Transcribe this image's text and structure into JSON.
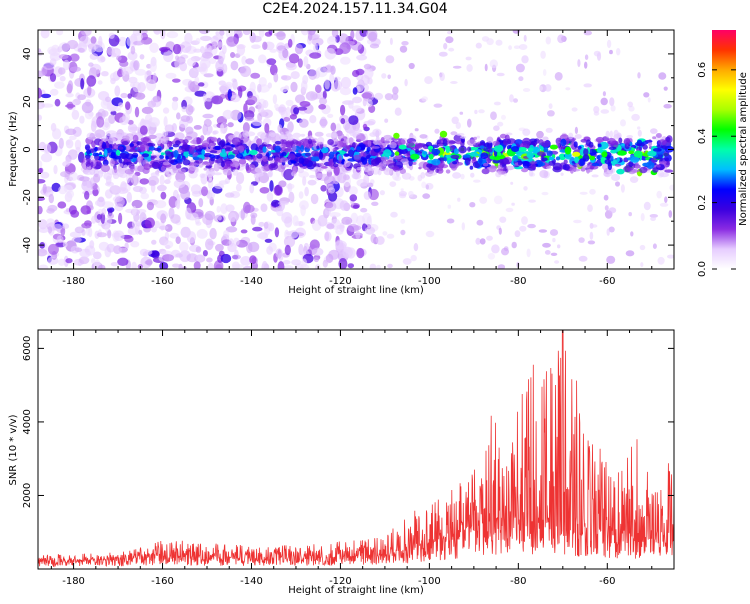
{
  "figure": {
    "title": "C2E4.2024.157.11.34.G04"
  },
  "chart_data": [
    {
      "type": "heatmap",
      "xlabel": "Height of straight line (km)",
      "ylabel": "Frequency (Hz)",
      "xlim": [
        -188,
        -45
      ],
      "ylim": [
        -50,
        50
      ],
      "x_ticks": [
        -180,
        -160,
        -140,
        -120,
        -100,
        -80,
        -60
      ],
      "y_ticks": [
        -40,
        -20,
        0,
        20,
        40
      ],
      "colorbar": {
        "label": "Normalized spectral amplitude",
        "range": [
          0.0,
          0.72
        ],
        "ticks": [
          0.0,
          0.2,
          0.4,
          0.6
        ],
        "tick_labels": [
          "0.0",
          "0.2",
          "0.4",
          "0.6"
        ],
        "colormap": [
          "#ffffff",
          "#e6ccff",
          "#8a2be2",
          "#3a00e0",
          "#0000ff",
          "#00bfff",
          "#00ffaa",
          "#00ff00",
          "#aaff00",
          "#ffff00",
          "#ffaa00",
          "#ff3300",
          "#ff0066"
        ]
      },
      "signal_band": {
        "center_freq_hz": -2,
        "halfwidth_hz": 7,
        "x_range": [
          -177,
          -46
        ]
      },
      "noise_extent": {
        "dense_x_range": [
          -188,
          -112
        ],
        "sparse_x_range": [
          -112,
          -45
        ]
      }
    },
    {
      "type": "line",
      "xlabel": "Height of straight line (km)",
      "ylabel": "SNR (10 * v/v)",
      "xlim": [
        -188,
        -45
      ],
      "ylim": [
        0,
        6500
      ],
      "x_ticks": [
        -180,
        -160,
        -140,
        -120,
        -100,
        -80,
        -60
      ],
      "y_ticks": [
        2000,
        4000,
        6000
      ],
      "series": [
        {
          "color": "#ee3333",
          "envelope": {
            "x": [
              -188,
              -180,
              -170,
              -165,
              -160,
              -150,
              -140,
              -130,
              -120,
              -110,
              -105,
              -100,
              -95,
              -90,
              -86,
              -84,
              -80,
              -76,
              -72,
              -70,
              -66,
              -62,
              -58,
              -54,
              -50,
              -46
            ],
            "baseline": [
              220,
              210,
              240,
              300,
              350,
              300,
              280,
              300,
              320,
              380,
              500,
              700,
              900,
              1100,
              1300,
              1300,
              1400,
              1300,
              1300,
              1200,
              1100,
              1000,
              900,
              900,
              900,
              900
            ],
            "peak": [
              400,
              400,
              500,
              650,
              900,
              700,
              650,
              650,
              750,
              900,
              1500,
              1900,
              2200,
              2700,
              4400,
              3800,
              4900,
              5800,
              5500,
              6500,
              4800,
              3400,
              2600,
              3900,
              3000,
              3200
            ]
          }
        }
      ]
    }
  ]
}
